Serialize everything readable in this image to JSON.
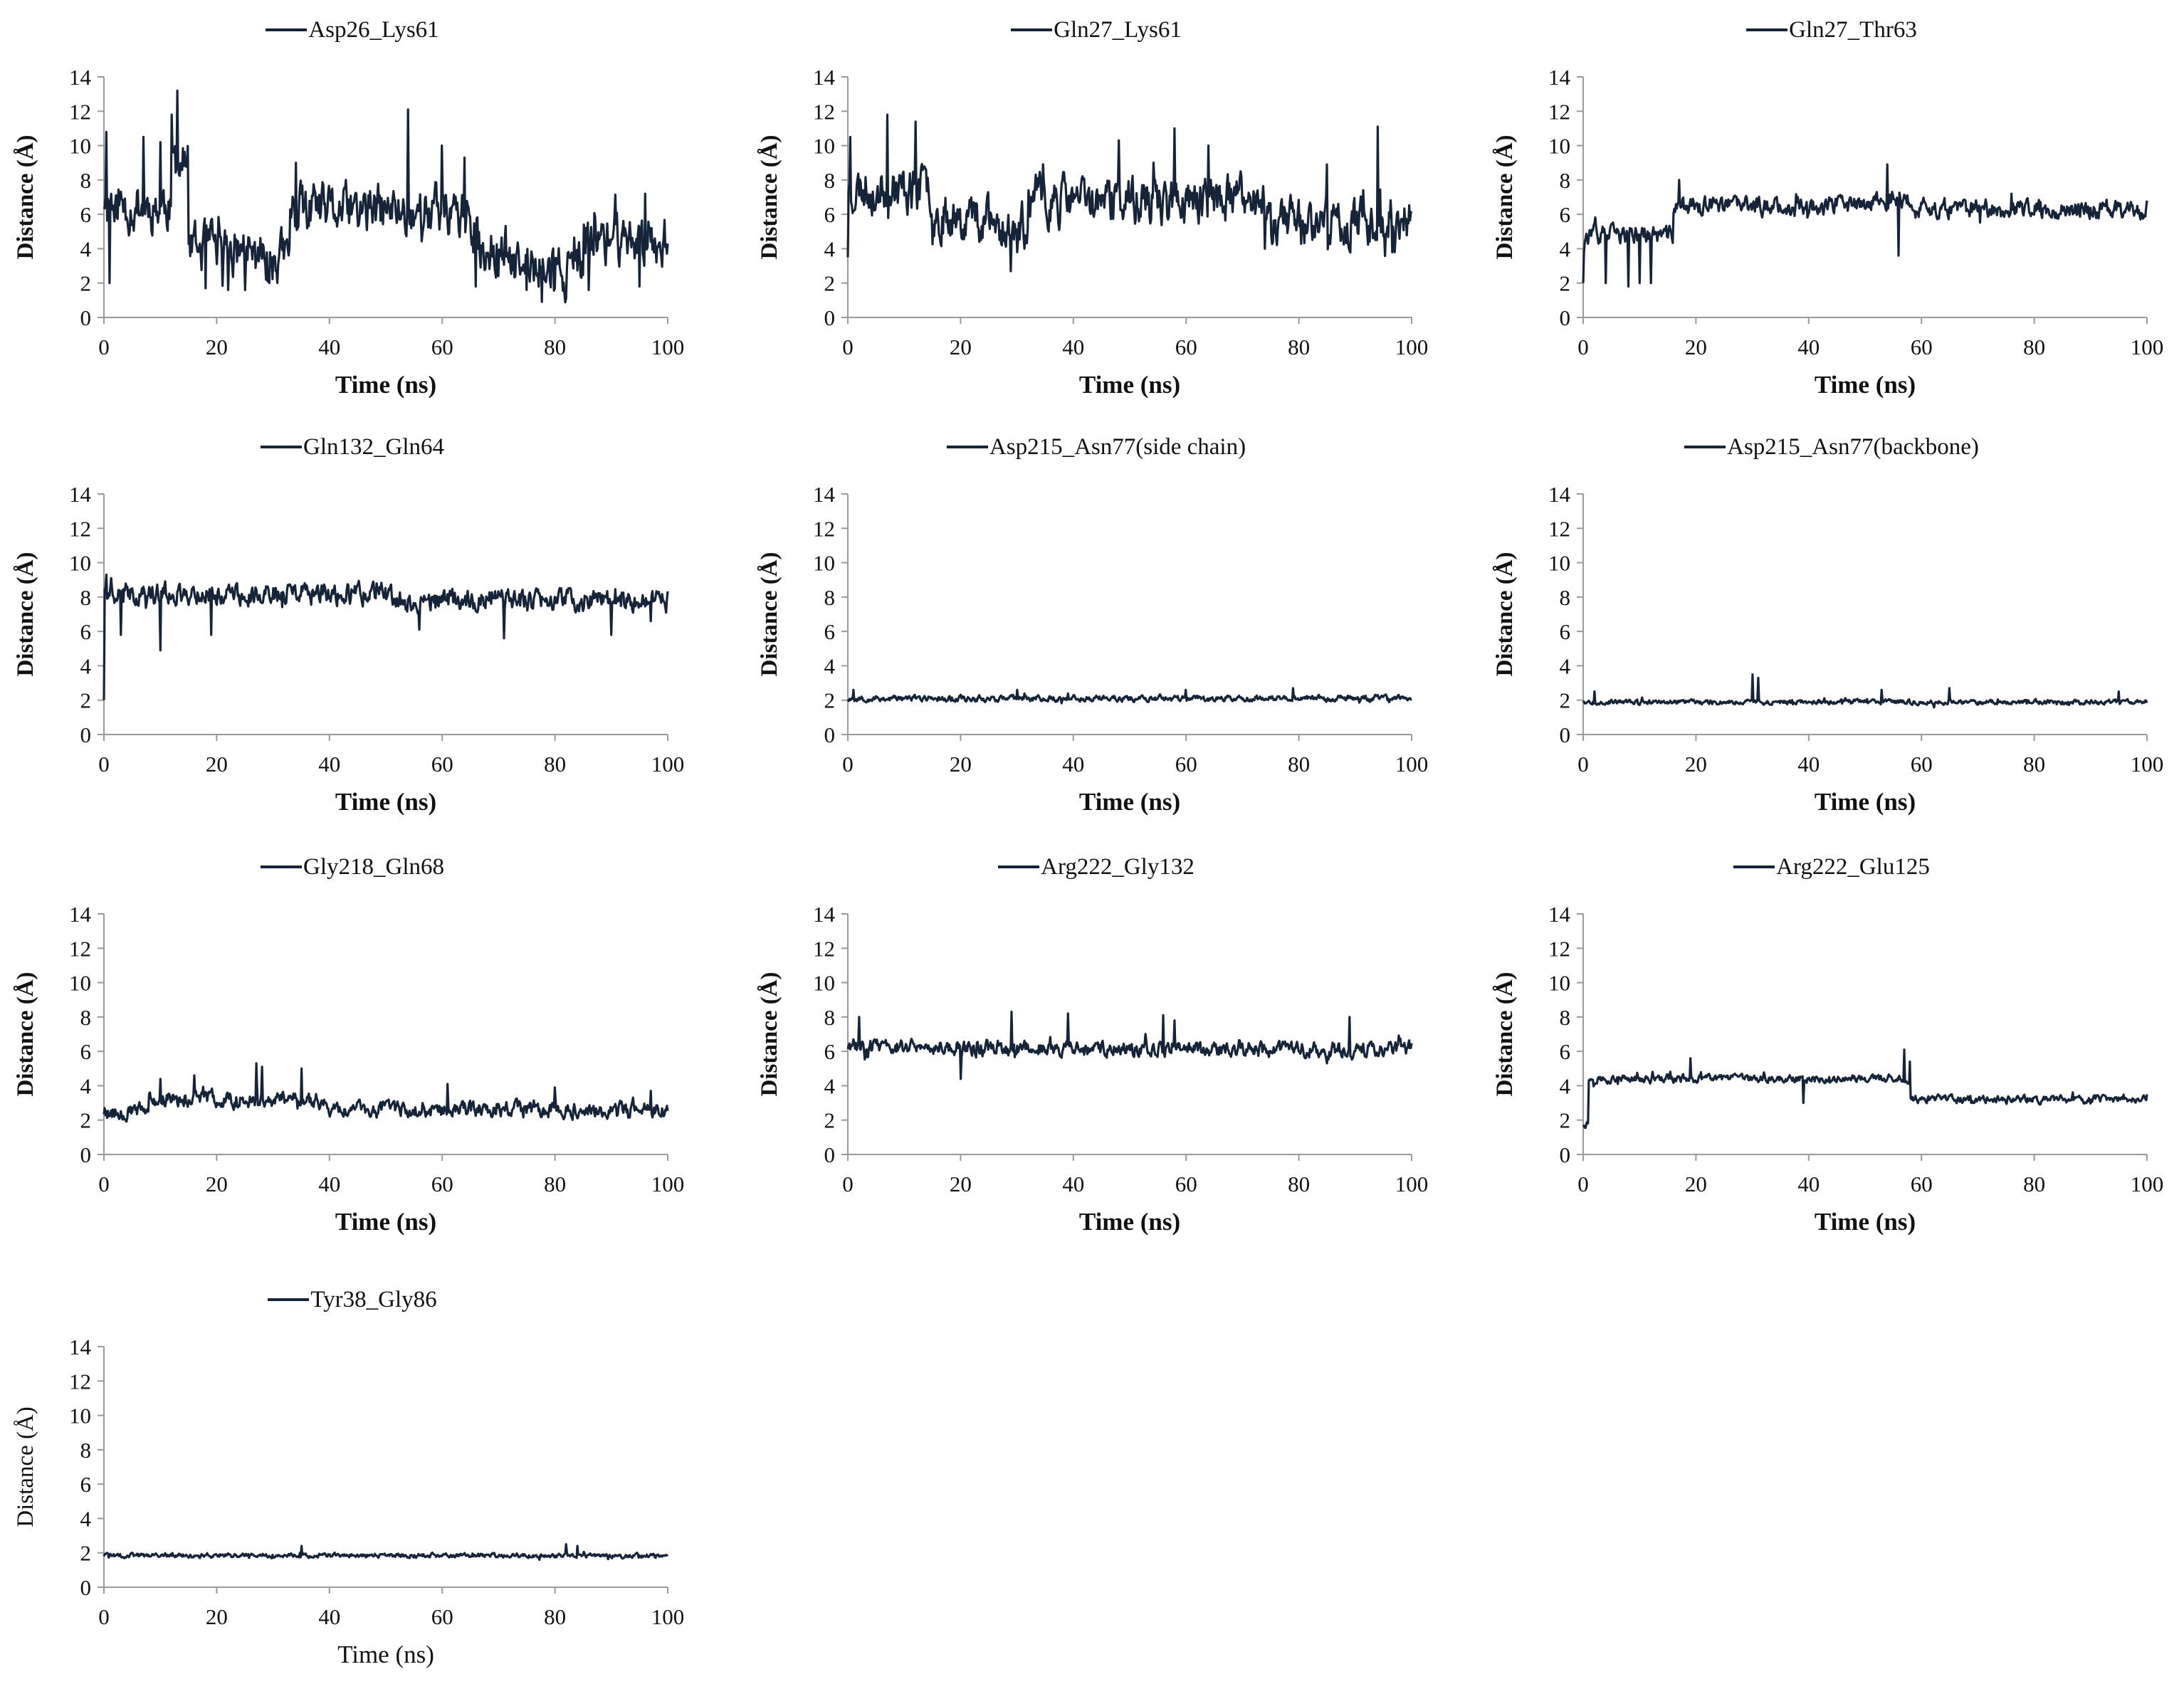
{
  "figure": {
    "line_color": "#16243a",
    "axis_color": "#9a9a9a"
  },
  "chart_data": [
    {
      "type": "line",
      "title": "",
      "legend": "Asp26_Lys61",
      "xlabel": "Time (ns)",
      "ylabel": "Distance (Å)",
      "xlim": [
        0,
        100
      ],
      "ylim": [
        0,
        14
      ],
      "xticks": [
        0,
        20,
        40,
        60,
        80,
        100
      ],
      "yticks": [
        0,
        2,
        4,
        6,
        8,
        10,
        12,
        14
      ],
      "label_style": "bold",
      "series": [
        {
          "name": "Asp26_Lys61",
          "segments": [
            [
              0,
              2,
              7
            ],
            [
              2,
              12,
              6.5
            ],
            [
              12,
              15,
              9
            ],
            [
              15,
              25,
              4
            ],
            [
              25,
              33,
              3.5
            ],
            [
              33,
              65,
              6.2
            ],
            [
              65,
              72,
              4
            ],
            [
              72,
              85,
              2.8
            ],
            [
              85,
              100,
              4.6
            ]
          ],
          "noise": 1.6,
          "spikes": [
            [
              0.5,
              10.8
            ],
            [
              1,
              2
            ],
            [
              7,
              10.5
            ],
            [
              10,
              10.2
            ],
            [
              12,
              11.8
            ],
            [
              13,
              13.2
            ],
            [
              18,
              1.7
            ],
            [
              22,
              1.6
            ],
            [
              25,
              1.6
            ],
            [
              34,
              9
            ],
            [
              54,
              12.1
            ],
            [
              60,
              10
            ],
            [
              64,
              9.3
            ],
            [
              66,
              1.8
            ],
            [
              75,
              1.6
            ],
            [
              80,
              1.7
            ],
            [
              86,
              1.6
            ],
            [
              95,
              1.8
            ],
            [
              96,
              7.2
            ]
          ],
          "seed": 11
        }
      ]
    },
    {
      "type": "line",
      "title": "",
      "legend": "Gln27_Lys61",
      "xlabel": "Time (ns)",
      "ylabel": "Distance (Å)",
      "xlim": [
        0,
        100
      ],
      "ylim": [
        0,
        14
      ],
      "xticks": [
        0,
        20,
        40,
        60,
        80,
        100
      ],
      "yticks": [
        0,
        2,
        4,
        6,
        8,
        10,
        12,
        14
      ],
      "label_style": "bold",
      "series": [
        {
          "name": "Gln27_Lys61",
          "segments": [
            [
              0,
              15,
              7.5
            ],
            [
              15,
              25,
              6
            ],
            [
              25,
              32,
              5.2
            ],
            [
              32,
              75,
              6.8
            ],
            [
              75,
              100,
              5.6
            ]
          ],
          "noise": 1.5,
          "spikes": [
            [
              0,
              3.5
            ],
            [
              0.5,
              10.5
            ],
            [
              7,
              11.8
            ],
            [
              12,
              11.4
            ],
            [
              30,
              3.8
            ],
            [
              48,
              10.3
            ],
            [
              58,
              11
            ],
            [
              64,
              10
            ],
            [
              74,
              4
            ],
            [
              85,
              8.9
            ],
            [
              94,
              11.1
            ],
            [
              97,
              3.8
            ]
          ],
          "seed": 23
        }
      ]
    },
    {
      "type": "line",
      "title": "",
      "legend": "Gln27_Thr63",
      "xlabel": "Time (ns)",
      "ylabel": "Distance (Å)",
      "xlim": [
        0,
        100
      ],
      "ylim": [
        0,
        14
      ],
      "xticks": [
        0,
        20,
        40,
        60,
        80,
        100
      ],
      "yticks": [
        0,
        2,
        4,
        6,
        8,
        10,
        12,
        14
      ],
      "label_style": "bold",
      "series": [
        {
          "name": "Gln27_Thr63",
          "segments": [
            [
              0,
              16,
              4.8
            ],
            [
              16,
              50,
              6.5
            ],
            [
              50,
              58,
              6.8
            ],
            [
              58,
              100,
              6.3
            ]
          ],
          "noise": 0.6,
          "spikes": [
            [
              0,
              2
            ],
            [
              4,
              2
            ],
            [
              8,
              1.8
            ],
            [
              10,
              2
            ],
            [
              12,
              2
            ],
            [
              17,
              8
            ],
            [
              54,
              8.9
            ],
            [
              56,
              3.6
            ],
            [
              76,
              7.2
            ],
            [
              100,
              6.8
            ]
          ],
          "seed": 37
        }
      ]
    },
    {
      "type": "line",
      "title": "",
      "legend": "Gln132_Gln64",
      "xlabel": "Time (ns)",
      "ylabel": "Distance (Å)",
      "xlim": [
        0,
        100
      ],
      "ylim": [
        0,
        14
      ],
      "xticks": [
        0,
        20,
        40,
        60,
        80,
        100
      ],
      "yticks": [
        0,
        2,
        4,
        6,
        8,
        10,
        12,
        14
      ],
      "label_style": "bold",
      "series": [
        {
          "name": "Gln132_Gln64",
          "segments": [
            [
              0,
              50,
              8.2
            ],
            [
              50,
              100,
              7.8
            ]
          ],
          "noise": 0.7,
          "spikes": [
            [
              0,
              2
            ],
            [
              0.5,
              9.3
            ],
            [
              3,
              5.8
            ],
            [
              10,
              4.9
            ],
            [
              19,
              5.8
            ],
            [
              56,
              6.1
            ],
            [
              71,
              5.6
            ],
            [
              90,
              5.8
            ],
            [
              97,
              6.6
            ]
          ],
          "seed": 41
        }
      ]
    },
    {
      "type": "line",
      "title": "",
      "legend": "Asp215_Asn77(side chain)",
      "xlabel": "Time (ns)",
      "ylabel": "Distance (Å)",
      "xlim": [
        0,
        100
      ],
      "ylim": [
        0,
        14
      ],
      "xticks": [
        0,
        20,
        40,
        60,
        80,
        100
      ],
      "yticks": [
        0,
        2,
        4,
        6,
        8,
        10,
        12,
        14
      ],
      "label_style": "bold",
      "series": [
        {
          "name": "Asp215_Asn77(side chain)",
          "segments": [
            [
              0,
              100,
              2.1
            ]
          ],
          "noise": 0.2,
          "spikes": [
            [
              1,
              2.6
            ],
            [
              30,
              2.6
            ],
            [
              60,
              2.6
            ],
            [
              79,
              2.7
            ]
          ],
          "seed": 53
        }
      ]
    },
    {
      "type": "line",
      "title": "",
      "legend": "Asp215_Asn77(backbone)",
      "xlabel": "Time (ns)",
      "ylabel": "Distance (Å)",
      "xlim": [
        0,
        100
      ],
      "ylim": [
        0,
        14
      ],
      "xticks": [
        0,
        20,
        40,
        60,
        80,
        100
      ],
      "yticks": [
        0,
        2,
        4,
        6,
        8,
        10,
        12,
        14
      ],
      "label_style": "bold",
      "series": [
        {
          "name": "Asp215_Asn77(backbone)",
          "segments": [
            [
              0,
              100,
              1.9
            ]
          ],
          "noise": 0.15,
          "spikes": [
            [
              2,
              2.5
            ],
            [
              30,
              3.5
            ],
            [
              31,
              3.3
            ],
            [
              53,
              2.6
            ],
            [
              65,
              2.7
            ],
            [
              95,
              2.5
            ]
          ],
          "seed": 67
        }
      ]
    },
    {
      "type": "line",
      "title": "",
      "legend": "Gly218_Gln68",
      "xlabel": "Time (ns)",
      "ylabel": "Distance (Å)",
      "xlim": [
        0,
        100
      ],
      "ylim": [
        0,
        14
      ],
      "xticks": [
        0,
        20,
        40,
        60,
        80,
        100
      ],
      "yticks": [
        0,
        2,
        4,
        6,
        8,
        10,
        12,
        14
      ],
      "label_style": "bold",
      "series": [
        {
          "name": "Gly218_Gln68",
          "segments": [
            [
              0,
              8,
              2.5
            ],
            [
              8,
              38,
              3.2
            ],
            [
              38,
              100,
              2.6
            ]
          ],
          "noise": 0.5,
          "spikes": [
            [
              10,
              4.4
            ],
            [
              16,
              4.6
            ],
            [
              27,
              5.3
            ],
            [
              28,
              5.1
            ],
            [
              35,
              5
            ],
            [
              61,
              4.1
            ],
            [
              80,
              3.9
            ],
            [
              97,
              3.7
            ]
          ],
          "seed": 79
        }
      ]
    },
    {
      "type": "line",
      "title": "",
      "legend": "Arg222_Gly132",
      "xlabel": "Time (ns)",
      "ylabel": "Distance (Å)",
      "xlim": [
        0,
        100
      ],
      "ylim": [
        0,
        14
      ],
      "xticks": [
        0,
        20,
        40,
        60,
        80,
        100
      ],
      "yticks": [
        0,
        2,
        4,
        6,
        8,
        10,
        12,
        14
      ],
      "label_style": "bold",
      "series": [
        {
          "name": "Arg222_Gly132",
          "segments": [
            [
              0,
              20,
              6.3
            ],
            [
              20,
              40,
              6.2
            ],
            [
              40,
              100,
              6.1
            ]
          ],
          "noise": 0.5,
          "spikes": [
            [
              2,
              8
            ],
            [
              20,
              4.4
            ],
            [
              29,
              8.3
            ],
            [
              39,
              8.2
            ],
            [
              56,
              8.1
            ],
            [
              58,
              7.8
            ],
            [
              89,
              8
            ],
            [
              85,
              5.3
            ]
          ],
          "seed": 83
        }
      ]
    },
    {
      "type": "line",
      "title": "",
      "legend": "Arg222_Glu125",
      "xlabel": "Time (ns)",
      "ylabel": "Distance (Å)",
      "xlim": [
        0,
        100
      ],
      "ylim": [
        0,
        14
      ],
      "xticks": [
        0,
        20,
        40,
        60,
        80,
        100
      ],
      "yticks": [
        0,
        2,
        4,
        6,
        8,
        10,
        12,
        14
      ],
      "label_style": "bold",
      "series": [
        {
          "name": "Arg222_Glu125",
          "segments": [
            [
              0,
              1,
              1.8
            ],
            [
              1,
              58,
              4.4
            ],
            [
              58,
              100,
              3.2
            ]
          ],
          "noise": 0.25,
          "spikes": [
            [
              1,
              4.3
            ],
            [
              19,
              5.6
            ],
            [
              39,
              3
            ],
            [
              57,
              6.1
            ],
            [
              58,
              5.4
            ],
            [
              100,
              3.5
            ]
          ],
          "seed": 97
        }
      ]
    },
    {
      "type": "line",
      "title": "",
      "legend": "Tyr38_Gly86",
      "xlabel": "Time (ns)",
      "ylabel": "Distance (Å)",
      "xlim": [
        0,
        100
      ],
      "ylim": [
        0,
        14
      ],
      "xticks": [
        0,
        20,
        40,
        60,
        80,
        100
      ],
      "yticks": [
        0,
        2,
        4,
        6,
        8,
        10,
        12,
        14
      ],
      "label_style": "plain",
      "series": [
        {
          "name": "Tyr38_Gly86",
          "segments": [
            [
              0,
              100,
              1.85
            ]
          ],
          "noise": 0.15,
          "spikes": [
            [
              35,
              2.4
            ],
            [
              82,
              2.5
            ],
            [
              84,
              2.4
            ]
          ],
          "seed": 101
        }
      ]
    }
  ]
}
